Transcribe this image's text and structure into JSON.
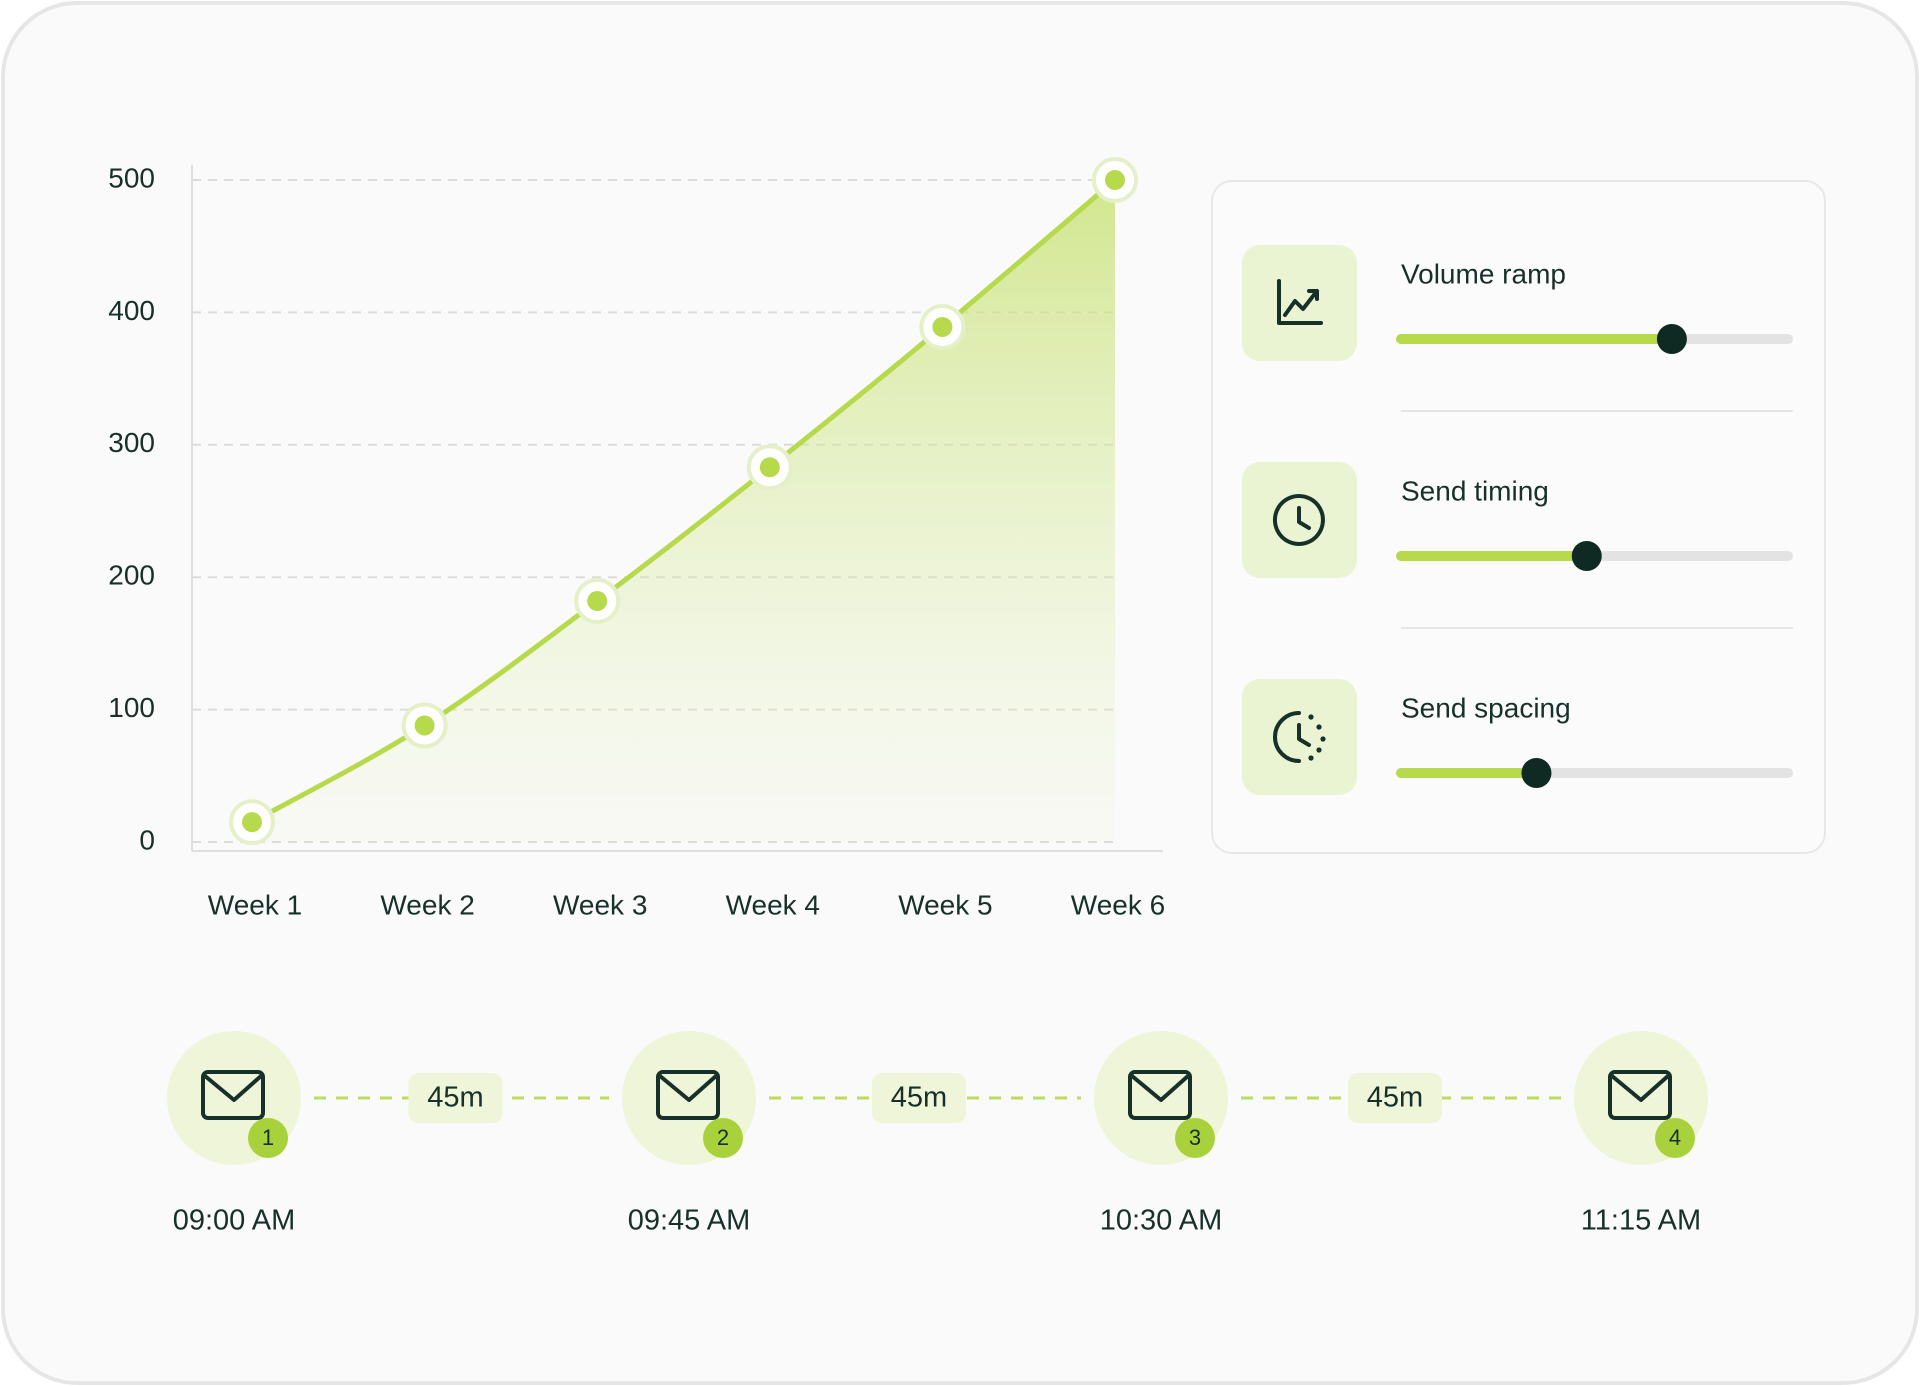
{
  "chart_data": {
    "type": "line",
    "categories": [
      "Week 1",
      "Week 2",
      "Week 3",
      "Week 4",
      "Week 5",
      "Week 6"
    ],
    "values": [
      15,
      88,
      182,
      283,
      389,
      500
    ],
    "color": "#b7d94c",
    "ylim": [
      0,
      500
    ],
    "yticks": [
      0,
      100,
      200,
      300,
      400,
      500
    ],
    "grid": true
  },
  "controls": {
    "range": [
      0,
      100
    ],
    "items": [
      {
        "label": "Volume ramp",
        "value": 70
      },
      {
        "label": "Send timing",
        "value": 48
      },
      {
        "label": "Send spacing",
        "value": 35
      }
    ]
  },
  "timeline": {
    "steps": [
      {
        "badge": 1,
        "time": "09:00 AM"
      },
      {
        "badge": 2,
        "time": "09:45 AM"
      },
      {
        "badge": 3,
        "time": "10:30 AM"
      },
      {
        "badge": 4,
        "time": "11:15 AM"
      }
    ],
    "gaps": [
      "45m",
      "45m",
      "45m"
    ]
  }
}
